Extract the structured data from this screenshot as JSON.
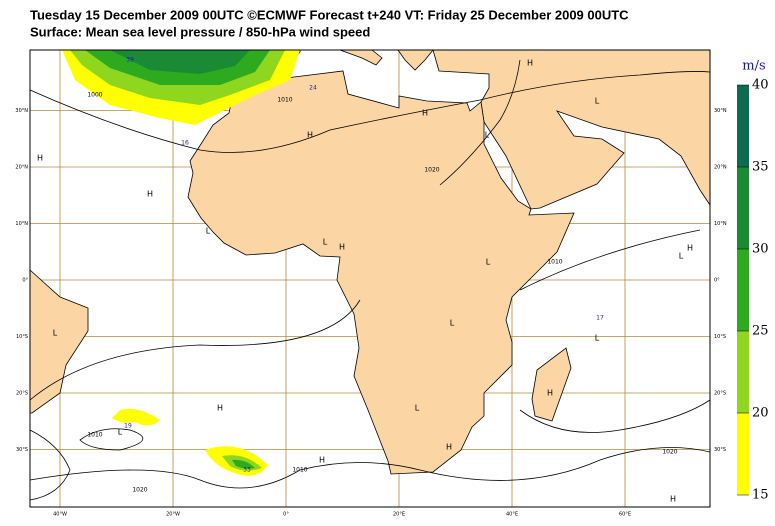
{
  "header": {
    "title": "Tuesday 15 December 2009 00UTC ©ECMWF Forecast t+240 VT: Friday 25 December 2009 00UTC",
    "subtitle": "Surface: Mean sea level pressure / 850-hPa wind speed"
  },
  "map": {
    "longitude_labels": [
      "40°W",
      "20°W",
      "0°",
      "20°E",
      "40°E",
      "60°E"
    ],
    "latitude_labels": [
      "30°N",
      "20°N",
      "10°N",
      "0°",
      "10°S",
      "20°S",
      "30°S"
    ],
    "pressure_centers": [
      "H",
      "H",
      "H",
      "H",
      "L",
      "L",
      "H",
      "L",
      "L",
      "H",
      "L",
      "H",
      "L",
      "L",
      "L",
      "L",
      "H",
      "L",
      "L",
      "H",
      "H",
      "H",
      "H"
    ],
    "isobar_labels": [
      "1000",
      "1010",
      "1020",
      "1010",
      "1010",
      "1020",
      "1020",
      "1010"
    ],
    "wind_labels": [
      "39",
      "24",
      "16",
      "19",
      "33",
      "17"
    ]
  },
  "legend": {
    "unit": "m/s",
    "ticks": [
      40,
      35,
      30,
      25,
      20,
      15
    ],
    "colors": [
      "#ffff00",
      "#8fd61f",
      "#2eaa1e",
      "#1a8a35",
      "#0f6b4f"
    ]
  }
}
